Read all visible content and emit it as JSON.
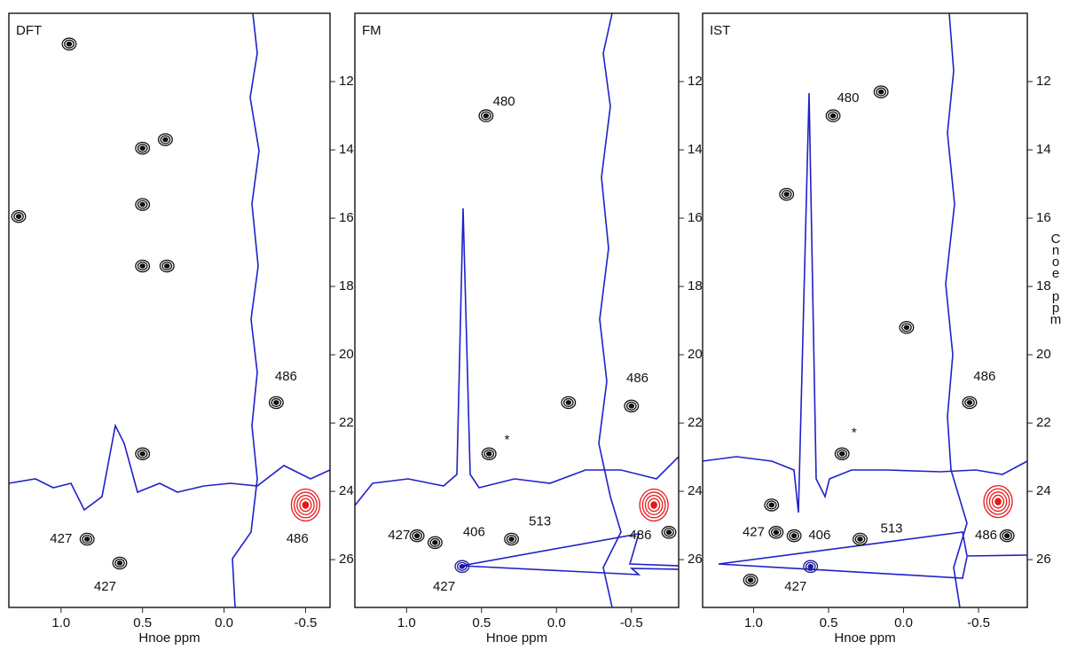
{
  "chart_data": [
    {
      "type": "contour",
      "title": "DFT",
      "xlabel": "Hnoe ppm",
      "xlim": [
        1.32,
        -0.65
      ],
      "ylim": [
        10,
        27.4
      ],
      "xticks": [
        {
          "value": 1,
          "label": "1.0"
        },
        0.5,
        {
          "value": 0,
          "label": "0.0"
        },
        -0.5
      ],
      "yticks": [
        12,
        14,
        16,
        18,
        20,
        22,
        24,
        26
      ],
      "series": [
        {
          "color": "#111111",
          "x": [
            0.5,
            0.5,
            0.5,
            0.35,
            -0.32,
            0.5,
            0.64,
            0.84,
            0.36,
            1.26,
            0.95
          ],
          "y": [
            13.95,
            15.6,
            17.4,
            17.4,
            21.4,
            22.9,
            26.1,
            25.4,
            13.7,
            15.95,
            10.9
          ]
        },
        {
          "color": "#e81818",
          "x": [
            -0.5
          ],
          "y": [
            24.4
          ]
        }
      ],
      "annotations": [
        {
          "text": "486",
          "x": -0.38,
          "y": 20.65
        },
        {
          "text": "486",
          "x": -0.45,
          "y": 25.4
        },
        {
          "text": "427",
          "x": 1.0,
          "y": 25.4
        },
        {
          "text": "427",
          "x": 0.73,
          "y": 26.8
        }
      ]
    },
    {
      "type": "contour",
      "title": "FM",
      "xlabel": "Hnoe ppm",
      "xlim": [
        1.345,
        -0.815
      ],
      "ylim": [
        10,
        27.4
      ],
      "xticks": [
        {
          "value": 1,
          "label": "1.0"
        },
        0.5,
        {
          "value": 0,
          "label": "0.0"
        },
        -0.5
      ],
      "yticks": [
        12,
        14,
        16,
        18,
        20,
        22,
        24,
        26
      ],
      "series": [
        {
          "color": "#111111",
          "x": [
            0.47,
            0.45,
            0.93,
            0.81,
            0.3,
            -0.5,
            -0.08,
            -0.75
          ],
          "y": [
            13.0,
            22.9,
            25.3,
            25.5,
            25.4,
            21.5,
            21.4,
            25.2
          ]
        },
        {
          "color": "#1a1a9a",
          "x": [
            0.63
          ],
          "y": [
            26.2
          ]
        },
        {
          "color": "#e81818",
          "x": [
            -0.65
          ],
          "y": [
            24.4
          ]
        }
      ],
      "annotations": [
        {
          "text": "480",
          "x": 0.35,
          "y": 12.6
        },
        {
          "text": "*",
          "x": 0.33,
          "y": 22.5
        },
        {
          "text": "427",
          "x": 1.05,
          "y": 25.3
        },
        {
          "text": "406",
          "x": 0.55,
          "y": 25.2
        },
        {
          "text": "513",
          "x": 0.11,
          "y": 24.9
        },
        {
          "text": "486",
          "x": -0.54,
          "y": 20.7
        },
        {
          "text": "486",
          "x": -0.56,
          "y": 25.3
        },
        {
          "text": "427",
          "x": 0.75,
          "y": 26.8
        }
      ]
    },
    {
      "type": "contour",
      "title": "IST",
      "xlabel": "Hnoe ppm",
      "ylabel": "Cnoe ppm",
      "xlim": [
        1.34,
        -0.825
      ],
      "ylim": [
        10,
        27.4
      ],
      "xticks": [
        {
          "value": 1,
          "label": "1.0"
        },
        0.5,
        {
          "value": 0,
          "label": "0.0"
        },
        -0.5
      ],
      "yticks": [
        12,
        14,
        16,
        18,
        20,
        22,
        24,
        26
      ],
      "series": [
        {
          "color": "#111111",
          "x": [
            0.47,
            0.15,
            0.78,
            -0.02,
            -0.44,
            0.41,
            0.85,
            0.73,
            0.29,
            -0.69,
            1.02,
            0.88
          ],
          "y": [
            13.0,
            12.3,
            15.3,
            19.2,
            21.4,
            22.9,
            25.2,
            25.3,
            25.4,
            25.3,
            26.6,
            24.4
          ]
        },
        {
          "color": "#1a1a9a",
          "x": [
            0.62
          ],
          "y": [
            26.2
          ]
        },
        {
          "color": "#e81818",
          "x": [
            -0.63
          ],
          "y": [
            24.3
          ]
        }
      ],
      "annotations": [
        {
          "text": "480",
          "x": 0.37,
          "y": 12.5
        },
        {
          "text": "*",
          "x": 0.33,
          "y": 22.3
        },
        {
          "text": "427",
          "x": 1.0,
          "y": 25.2
        },
        {
          "text": "406",
          "x": 0.56,
          "y": 25.3
        },
        {
          "text": "513",
          "x": 0.08,
          "y": 25.1
        },
        {
          "text": "486",
          "x": -0.54,
          "y": 20.65
        },
        {
          "text": "486",
          "x": -0.55,
          "y": 25.3
        },
        {
          "text": "427",
          "x": 0.72,
          "y": 26.8
        }
      ]
    }
  ]
}
